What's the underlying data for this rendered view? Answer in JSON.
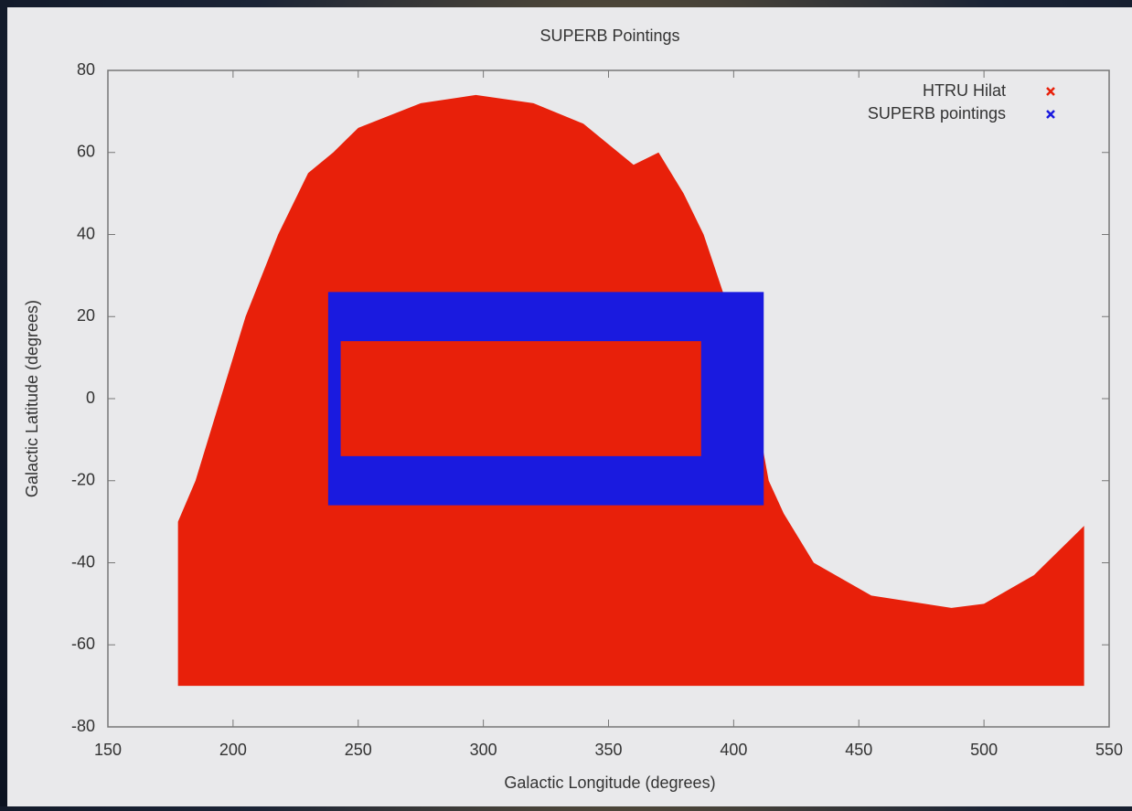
{
  "chart_data": {
    "type": "scatter",
    "title": "SUPERB Pointings",
    "x_label": "Galactic Longitude (degrees)",
    "y_label": "Galactic Latitude (degrees)",
    "xlim": [
      150,
      550
    ],
    "ylim": [
      -80,
      80
    ],
    "xticks": [
      150,
      200,
      250,
      300,
      350,
      400,
      450,
      500,
      550
    ],
    "yticks": [
      -80,
      -60,
      -40,
      -20,
      0,
      20,
      40,
      60,
      80
    ],
    "legend": "upper right",
    "series": [
      {
        "name": "HTRU Hilat",
        "color": "#e8200a",
        "x": [
          178,
          178,
          185,
          195,
          205,
          218,
          230,
          240,
          250,
          275,
          297,
          320,
          340,
          360,
          370,
          380,
          388,
          399,
          405,
          414,
          420,
          432,
          455,
          487,
          500,
          520,
          535,
          540,
          540
        ],
        "y": [
          -70,
          -30,
          -20,
          0,
          20,
          40,
          55,
          60,
          66,
          72,
          74,
          72,
          67,
          57,
          60,
          50,
          40,
          20,
          10,
          -20,
          -28,
          -40,
          -48,
          -51,
          -50,
          -43,
          -34,
          -31,
          -70
        ]
      },
      {
        "name": "SUPERB pointings",
        "color": "#1a1adf",
        "x": [
          238,
          412,
          412,
          238,
          null,
          243,
          387,
          387,
          243
        ],
        "y": [
          26,
          26,
          -26,
          -26,
          null,
          14,
          14,
          -14,
          -14
        ]
      }
    ]
  }
}
